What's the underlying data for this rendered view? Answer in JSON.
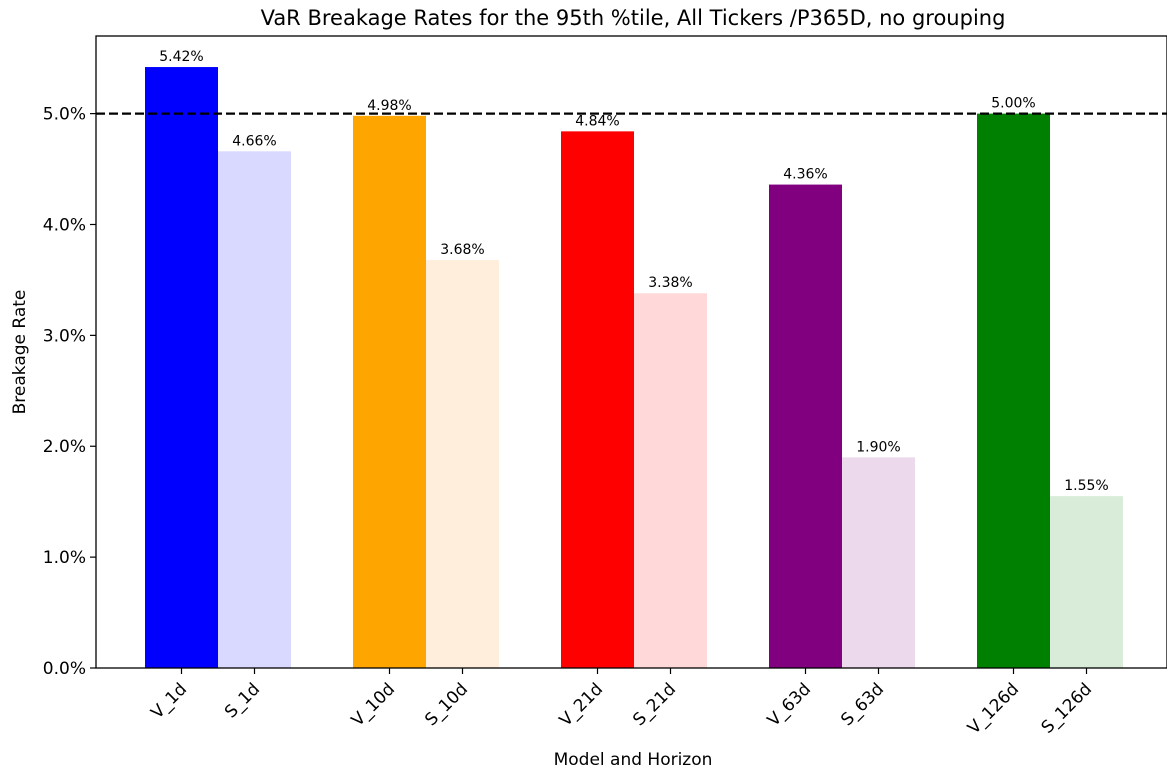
{
  "chart_data": {
    "type": "bar",
    "title": "VaR Breakage Rates for the 95th %tile, All Tickers /P365D, no grouping",
    "xlabel": "Model and Horizon",
    "ylabel": "Breakage Rate",
    "ylim": [
      0,
      5.7
    ],
    "yticks": [
      {
        "value": 0,
        "label": "0.0%"
      },
      {
        "value": 1,
        "label": "1.0%"
      },
      {
        "value": 2,
        "label": "2.0%"
      },
      {
        "value": 3,
        "label": "3.0%"
      },
      {
        "value": 4,
        "label": "4.0%"
      },
      {
        "value": 5,
        "label": "5.0%"
      }
    ],
    "reference_line": {
      "value": 5.0,
      "style": "dashed",
      "color": "#000000"
    },
    "grid": false,
    "bars": [
      {
        "category": "V_1d",
        "value": 5.42,
        "label": "5.42%",
        "color": "#0000ff"
      },
      {
        "category": "S_1d",
        "value": 4.66,
        "label": "4.66%",
        "color": "#d9d9ff"
      },
      {
        "category": "V_10d",
        "value": 4.98,
        "label": "4.98%",
        "color": "#ffa500"
      },
      {
        "category": "S_10d",
        "value": 3.68,
        "label": "3.68%",
        "color": "#ffeedb"
      },
      {
        "category": "V_21d",
        "value": 4.84,
        "label": "4.84%",
        "color": "#ff0000"
      },
      {
        "category": "S_21d",
        "value": 3.38,
        "label": "3.38%",
        "color": "#ffd9d9"
      },
      {
        "category": "V_63d",
        "value": 4.36,
        "label": "4.36%",
        "color": "#800080"
      },
      {
        "category": "S_63d",
        "value": 1.9,
        "label": "1.90%",
        "color": "#ecd9ec"
      },
      {
        "category": "V_126d",
        "value": 5.0,
        "label": "5.00%",
        "color": "#008000"
      },
      {
        "category": "S_126d",
        "value": 1.55,
        "label": "1.55%",
        "color": "#d9ecd9"
      }
    ]
  }
}
